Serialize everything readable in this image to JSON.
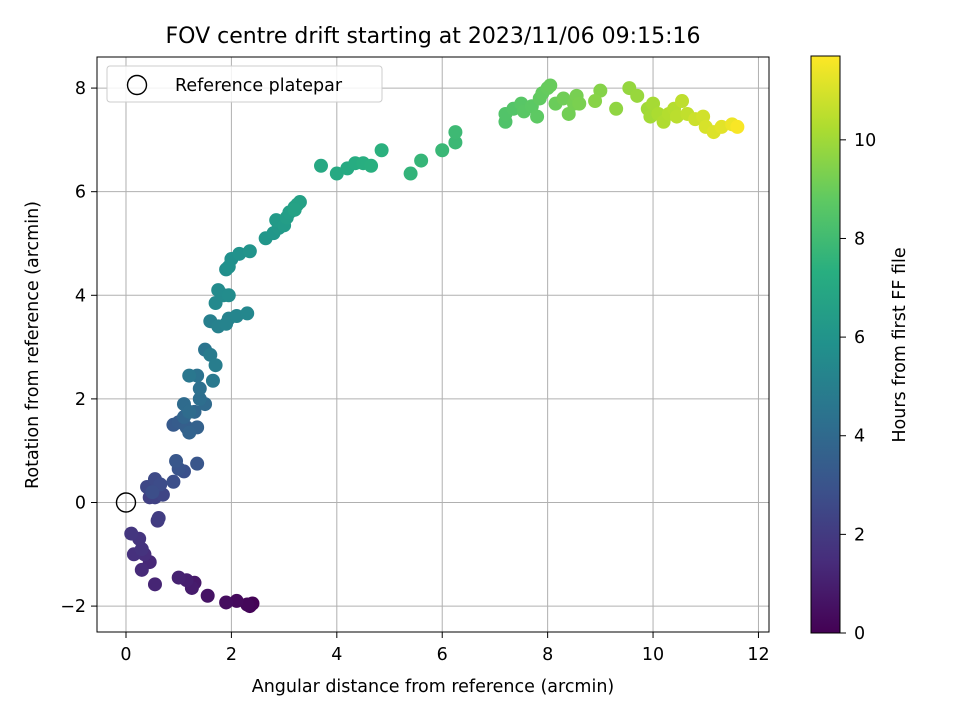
{
  "chart_data": {
    "type": "scatter",
    "title": "FOV centre drift starting at 2023/11/06 09:15:16",
    "xlabel": "Angular distance from reference (arcmin)",
    "ylabel": "Rotation from reference (arcmin)",
    "colorbar_label": "Hours from first FF file",
    "xlim": [
      -0.55,
      12.2
    ],
    "ylim": [
      -2.5,
      8.6
    ],
    "x_ticks": [
      0,
      2,
      4,
      6,
      8,
      10,
      12
    ],
    "y_ticks": [
      -2,
      0,
      2,
      4,
      6,
      8
    ],
    "x_tick_labels": [
      "0",
      "2",
      "4",
      "6",
      "8",
      "10",
      "12"
    ],
    "y_tick_labels": [
      "−2",
      "0",
      "2",
      "4",
      "6",
      "8"
    ],
    "colorbar_range": [
      0,
      11.7
    ],
    "colorbar_ticks": [
      0,
      2,
      4,
      6,
      8,
      10
    ],
    "colorbar_tick_labels": [
      "0",
      "2",
      "4",
      "6",
      "8",
      "10"
    ],
    "colormap": "viridis",
    "grid": true,
    "legend": {
      "position": "top-left",
      "entries": [
        "Reference platepar"
      ]
    },
    "reference_point": {
      "x": 0,
      "y": 0
    },
    "points": [
      [
        2.4,
        -1.95,
        0.05
      ],
      [
        2.35,
        -2.0,
        0.1
      ],
      [
        2.3,
        -1.97,
        0.2
      ],
      [
        2.1,
        -1.9,
        0.3
      ],
      [
        1.9,
        -1.93,
        0.4
      ],
      [
        1.55,
        -1.8,
        0.6
      ],
      [
        1.3,
        -1.55,
        0.8
      ],
      [
        1.25,
        -1.65,
        0.9
      ],
      [
        1.15,
        -1.5,
        1.0
      ],
      [
        1.0,
        -1.45,
        1.1
      ],
      [
        0.55,
        -1.58,
        1.2
      ],
      [
        0.45,
        -1.15,
        1.3
      ],
      [
        0.3,
        -1.3,
        1.4
      ],
      [
        0.35,
        -1.0,
        1.5
      ],
      [
        0.15,
        -1.0,
        1.6
      ],
      [
        0.3,
        -0.9,
        1.7
      ],
      [
        0.25,
        -0.7,
        1.75
      ],
      [
        0.1,
        -0.6,
        1.8
      ],
      [
        0.6,
        -0.35,
        2.0
      ],
      [
        0.62,
        -0.3,
        2.1
      ],
      [
        0.45,
        0.1,
        2.2
      ],
      [
        0.55,
        0.1,
        2.3
      ],
      [
        0.7,
        0.15,
        2.4
      ],
      [
        0.4,
        0.3,
        2.5
      ],
      [
        0.55,
        0.45,
        2.6
      ],
      [
        0.65,
        0.35,
        2.7
      ],
      [
        0.5,
        0.2,
        2.75
      ],
      [
        0.9,
        0.4,
        2.8
      ],
      [
        1.1,
        0.6,
        2.9
      ],
      [
        1.0,
        0.65,
        3.0
      ],
      [
        1.35,
        0.75,
        3.1
      ],
      [
        0.95,
        0.8,
        3.15
      ],
      [
        0.9,
        1.5,
        3.3
      ],
      [
        1.0,
        1.55,
        3.4
      ],
      [
        1.15,
        1.45,
        3.5
      ],
      [
        1.35,
        1.45,
        3.6
      ],
      [
        1.2,
        1.35,
        3.7
      ],
      [
        1.1,
        1.65,
        3.8
      ],
      [
        1.3,
        1.75,
        3.9
      ],
      [
        1.5,
        1.9,
        4.0
      ],
      [
        1.1,
        1.9,
        4.05
      ],
      [
        1.2,
        1.75,
        4.1
      ],
      [
        1.4,
        2.0,
        4.2
      ],
      [
        1.4,
        2.2,
        4.3
      ],
      [
        1.35,
        2.45,
        4.4
      ],
      [
        1.5,
        2.95,
        4.5
      ],
      [
        1.2,
        2.45,
        4.6
      ],
      [
        1.65,
        2.35,
        4.7
      ],
      [
        1.6,
        2.85,
        4.8
      ],
      [
        1.7,
        2.65,
        4.9
      ],
      [
        1.6,
        3.5,
        5.0
      ],
      [
        1.75,
        3.4,
        5.1
      ],
      [
        1.95,
        3.55,
        5.15
      ],
      [
        1.9,
        3.45,
        5.2
      ],
      [
        2.1,
        3.6,
        5.3
      ],
      [
        2.3,
        3.65,
        5.4
      ],
      [
        1.7,
        3.85,
        5.45
      ],
      [
        1.85,
        4.0,
        5.5
      ],
      [
        1.75,
        4.1,
        5.55
      ],
      [
        1.95,
        4.0,
        5.6
      ],
      [
        1.9,
        4.5,
        5.7
      ],
      [
        2.0,
        4.7,
        5.8
      ],
      [
        1.95,
        4.55,
        5.85
      ],
      [
        2.15,
        4.8,
        5.9
      ],
      [
        2.35,
        4.85,
        6.0
      ],
      [
        2.65,
        5.1,
        6.1
      ],
      [
        2.8,
        5.2,
        6.15
      ],
      [
        2.9,
        5.3,
        6.2
      ],
      [
        2.85,
        5.45,
        6.3
      ],
      [
        3.0,
        5.35,
        6.35
      ],
      [
        3.05,
        5.5,
        6.45
      ],
      [
        3.1,
        5.6,
        6.5
      ],
      [
        3.2,
        5.7,
        6.55
      ],
      [
        3.3,
        5.8,
        6.6
      ],
      [
        3.25,
        5.75,
        6.65
      ],
      [
        3.2,
        5.65,
        6.7
      ],
      [
        3.7,
        6.5,
        7.0
      ],
      [
        4.0,
        6.35,
        7.05
      ],
      [
        4.2,
        6.45,
        7.1
      ],
      [
        4.35,
        6.55,
        7.2
      ],
      [
        4.5,
        6.55,
        7.3
      ],
      [
        4.65,
        6.5,
        7.35
      ],
      [
        4.85,
        6.8,
        7.4
      ],
      [
        5.4,
        6.35,
        7.6
      ],
      [
        5.6,
        6.6,
        7.7
      ],
      [
        6.0,
        6.8,
        7.8
      ],
      [
        6.25,
        6.95,
        7.85
      ],
      [
        6.25,
        7.15,
        7.9
      ],
      [
        7.2,
        7.35,
        8.4
      ],
      [
        7.2,
        7.5,
        8.45
      ],
      [
        7.35,
        7.6,
        8.5
      ],
      [
        7.5,
        7.7,
        8.6
      ],
      [
        7.55,
        7.55,
        8.65
      ],
      [
        7.7,
        7.65,
        8.7
      ],
      [
        7.8,
        7.45,
        8.75
      ],
      [
        7.85,
        7.8,
        8.8
      ],
      [
        7.9,
        7.9,
        8.85
      ],
      [
        8.0,
        8.0,
        8.9
      ],
      [
        8.05,
        8.05,
        8.95
      ],
      [
        8.15,
        7.7,
        9.0
      ],
      [
        8.3,
        7.8,
        9.1
      ],
      [
        8.4,
        7.5,
        9.15
      ],
      [
        8.5,
        7.7,
        9.2
      ],
      [
        8.55,
        7.85,
        9.25
      ],
      [
        8.6,
        7.7,
        9.3
      ],
      [
        9.0,
        7.95,
        9.5
      ],
      [
        8.9,
        7.75,
        9.55
      ],
      [
        9.3,
        7.6,
        9.7
      ],
      [
        9.55,
        8.0,
        9.8
      ],
      [
        9.7,
        7.85,
        9.85
      ],
      [
        9.9,
        7.6,
        10.0
      ],
      [
        9.95,
        7.45,
        10.05
      ],
      [
        10.0,
        7.7,
        10.1
      ],
      [
        10.1,
        7.5,
        10.2
      ],
      [
        10.2,
        7.35,
        10.3
      ],
      [
        10.3,
        7.5,
        10.35
      ],
      [
        10.4,
        7.6,
        10.4
      ],
      [
        10.45,
        7.45,
        10.5
      ],
      [
        10.55,
        7.75,
        10.55
      ],
      [
        10.65,
        7.5,
        10.6
      ],
      [
        10.8,
        7.4,
        10.8
      ],
      [
        10.95,
        7.45,
        10.9
      ],
      [
        11.0,
        7.25,
        11.0
      ],
      [
        11.15,
        7.15,
        11.1
      ],
      [
        11.3,
        7.25,
        11.2
      ],
      [
        11.5,
        7.3,
        11.4
      ],
      [
        11.6,
        7.25,
        11.6
      ]
    ]
  }
}
